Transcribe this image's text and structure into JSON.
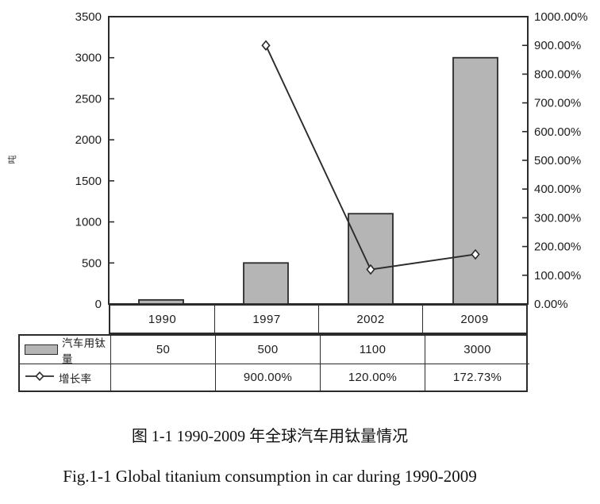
{
  "captions": {
    "chinese": "图 1-1 1990-2009 年全球汽车用钛量情况",
    "english": "Fig.1-1 Global titanium consumption in car during 1990-2009"
  },
  "chart_data": {
    "type": "bar",
    "subtype": "bar+line combo with data table",
    "categories": [
      "1990",
      "1997",
      "2002",
      "2009"
    ],
    "series": [
      {
        "name": "汽车用钛量",
        "type": "bar",
        "axis": "left",
        "values": [
          50,
          500,
          1100,
          3000
        ],
        "display": [
          "50",
          "500",
          "1100",
          "3000"
        ],
        "color": "#b5b5b5",
        "border_color": "#2b2b2b"
      },
      {
        "name": "增长率",
        "type": "line",
        "axis": "right",
        "values": [
          null,
          900,
          120,
          172.73
        ],
        "display": [
          "",
          "900.00%",
          "120.00%",
          "172.73%"
        ],
        "color": "#2b2b2b",
        "marker": "diamond-white"
      }
    ],
    "left_axis": {
      "label": "吨",
      "min": 0,
      "max": 3500,
      "step": 500,
      "ticks": [
        "3500",
        "3000",
        "2500",
        "2000",
        "1500",
        "1000",
        "500",
        "0"
      ]
    },
    "right_axis": {
      "min": 0,
      "max": 1000,
      "step": 100,
      "ticks": [
        "1000.00%",
        "900.00%",
        "800.00%",
        "700.00%",
        "600.00%",
        "500.00%",
        "400.00%",
        "300.00%",
        "200.00%",
        "100.00%",
        "0.00%"
      ]
    },
    "grid": false,
    "legend_position": "table-left-column",
    "frame": true
  }
}
